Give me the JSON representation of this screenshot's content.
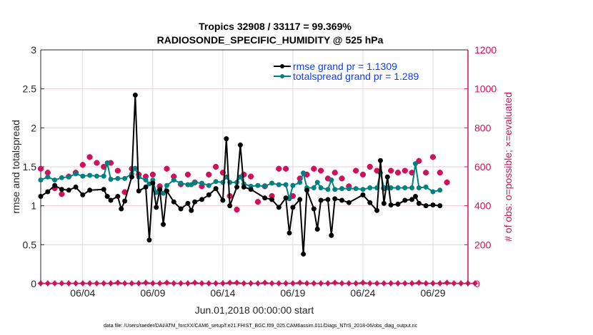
{
  "chart_data": {
    "type": "line",
    "title": "Tropics 32908 / 33117 = 99.369%",
    "subtitle": "RADIOSONDE_SPECIFIC_HUMIDITY @ 525 hPa",
    "xlabel": "Jun.01,2018 00:00:00 start",
    "ylabel": "rmse and totalspread",
    "y2label": "# of obs: o=possible; ×=evaluated",
    "footnote": "data file: /Users/raeder/DAI/ATM_forcXX/CAM6_setup/f.e21.FHIST_BGC.f09_025.CAM6assim.011/Diags_NTrS_2018-06/obs_diag_output.nc",
    "xlim_days": [
      0,
      30.5
    ],
    "ylim": [
      0,
      3
    ],
    "y2lim": [
      0,
      1200
    ],
    "yticks": [
      "0",
      "0.5",
      "1",
      "1.5",
      "2",
      "2.5",
      "3"
    ],
    "y2ticks": [
      "0",
      "200",
      "400",
      "600",
      "800",
      "1000",
      "1200"
    ],
    "xticks": [
      {
        "day": 3,
        "label": "06/04"
      },
      {
        "day": 8,
        "label": "06/09"
      },
      {
        "day": 13,
        "label": "06/14"
      },
      {
        "day": 18,
        "label": "06/19"
      },
      {
        "day": 23,
        "label": "06/24"
      },
      {
        "day": 28,
        "label": "06/29"
      }
    ],
    "legend": {
      "placement": "top-right",
      "entries": [
        "rmse grand pr = 1.1309",
        "totalspread grand pr = 1.289"
      ]
    },
    "colors": {
      "rmse": "#000000",
      "totalspread": "#008080",
      "obs": "#d0105a",
      "legend_text": "#0a3cff",
      "grid": "#f0c8d8"
    },
    "time_step_days": 0.25,
    "series": [
      {
        "name": "rmse",
        "axis": "left",
        "values": [
          1.12,
          null,
          1.18,
          null,
          1.26,
          null,
          1.21,
          null,
          1.2,
          null,
          1.24,
          null,
          1.14,
          null,
          1.2,
          null,
          null,
          null,
          1.21,
          1.12,
          1.07,
          null,
          1.12,
          0.96,
          1.06,
          null,
          1.37,
          2.42,
          1.19,
          null,
          1.24,
          0.56,
          1.29,
          0.98,
          1.21,
          0.76,
          1.19,
          null,
          1.05,
          null,
          0.96,
          null,
          1.03,
          0.94,
          1.05,
          null,
          1.08,
          null,
          1.14,
          null,
          1.22,
          null,
          1.07,
          1.86,
          1.0,
          null,
          1.24,
          1.78,
          1.24,
          null,
          1.21,
          null,
          null,
          null,
          1.1,
          null,
          1.08,
          null,
          0.98,
          null,
          1.1,
          0.65,
          0.98,
          null,
          1.08,
          0.38,
          1.2,
          null,
          0.96,
          0.7,
          1.07,
          null,
          1.08,
          0.62,
          1.09,
          null,
          1.07,
          null,
          1.04,
          null,
          null,
          null,
          1.14,
          null,
          1.04,
          null,
          0.94,
          1.58,
          1.03,
          1.37,
          1.01,
          null,
          1.02,
          null,
          1.07,
          null,
          1.08,
          1.12,
          1.03,
          null,
          1.0,
          null,
          1.01,
          null,
          1.0,
          null
        ]
      },
      {
        "name": "totalspread",
        "axis": "left",
        "values": [
          1.33,
          null,
          1.37,
          null,
          1.33,
          null,
          1.36,
          null,
          1.37,
          null,
          1.41,
          null,
          1.38,
          null,
          1.39,
          null,
          1.38,
          null,
          1.38,
          1.55,
          1.34,
          null,
          1.35,
          null,
          1.35,
          null,
          1.41,
          1.48,
          1.37,
          null,
          1.33,
          1.28,
          1.33,
          1.17,
          1.2,
          1.16,
          1.26,
          null,
          1.33,
          null,
          1.29,
          null,
          1.27,
          1.27,
          1.3,
          null,
          1.29,
          null,
          1.26,
          null,
          1.31,
          null,
          1.3,
          1.37,
          1.3,
          null,
          1.3,
          1.37,
          1.28,
          null,
          1.25,
          null,
          1.26,
          null,
          1.25,
          null,
          1.29,
          null,
          1.27,
          null,
          1.27,
          1.09,
          1.26,
          null,
          1.3,
          1.42,
          1.23,
          null,
          1.23,
          1.3,
          1.23,
          null,
          1.21,
          1.33,
          1.21,
          null,
          1.22,
          null,
          1.22,
          null,
          1.22,
          null,
          1.21,
          null,
          1.23,
          null,
          1.23,
          1.42,
          1.23,
          1.23,
          1.23,
          null,
          1.23,
          null,
          1.23,
          null,
          1.23,
          1.54,
          1.23,
          null,
          1.24,
          null,
          1.18,
          null,
          1.2,
          null
        ]
      },
      {
        "name": "obs_possible",
        "axis": "right",
        "values": [
          590,
          null,
          570,
          null,
          490,
          null,
          460,
          null,
          550,
          null,
          570,
          null,
          610,
          null,
          650,
          null,
          620,
          null,
          600,
          null,
          620,
          null,
          580,
          null,
          470,
          null,
          590,
          null,
          560,
          null,
          550,
          null,
          560,
          null,
          500,
          null,
          590,
          null,
          550,
          null,
          510,
          null,
          560,
          null,
          520,
          null,
          500,
          null,
          560,
          null,
          600,
          null,
          570,
          null,
          450,
          null,
          380,
          null,
          560,
          null,
          550,
          null,
          420,
          null,
          500,
          null,
          450,
          null,
          590,
          null,
          590,
          null,
          450,
          null,
          540,
          null,
          560,
          null,
          590,
          null,
          580,
          null,
          540,
          null,
          570,
          null,
          540,
          null,
          500,
          null,
          580,
          null,
          560,
          null,
          600,
          null,
          580,
          null,
          490,
          null,
          580,
          null,
          570,
          null,
          580,
          null,
          570,
          null,
          630,
          null,
          570,
          null,
          650,
          null,
          570,
          null,
          520,
          null
        ]
      },
      {
        "name": "obs_evaluated",
        "axis": "right",
        "values": [
          590,
          null,
          570,
          null,
          490,
          null,
          460,
          null,
          550,
          null,
          570,
          null,
          610,
          null,
          650,
          null,
          620,
          null,
          600,
          null,
          620,
          null,
          580,
          null,
          470,
          null,
          590,
          null,
          560,
          null,
          550,
          null,
          560,
          null,
          500,
          null,
          590,
          null,
          550,
          null,
          510,
          null,
          560,
          null,
          520,
          null,
          500,
          null,
          560,
          null,
          600,
          null,
          570,
          null,
          450,
          null,
          380,
          null,
          560,
          null,
          550,
          null,
          420,
          null,
          500,
          null,
          450,
          null,
          590,
          null,
          590,
          null,
          450,
          null,
          540,
          null,
          560,
          null,
          590,
          null,
          580,
          null,
          540,
          null,
          570,
          null,
          540,
          null,
          500,
          null,
          580,
          null,
          560,
          null,
          600,
          null,
          580,
          null,
          490,
          null,
          580,
          null,
          570,
          null,
          580,
          null,
          570,
          null,
          630,
          null,
          570,
          null,
          650,
          null,
          570,
          null,
          520,
          null
        ]
      },
      {
        "name": "obs_bottom",
        "axis": "right",
        "values": [
          2,
          null,
          2,
          null,
          2,
          null,
          2,
          null,
          2,
          null,
          2,
          null,
          2,
          null,
          2,
          null,
          2,
          null,
          2,
          null,
          2,
          null,
          5,
          null,
          2,
          null,
          2,
          null,
          2,
          null,
          5,
          null,
          2,
          null,
          2,
          null,
          5,
          null,
          2,
          null,
          2,
          null,
          2,
          null,
          5,
          null,
          2,
          null,
          2,
          null,
          2,
          null,
          2,
          null,
          5,
          null,
          5,
          null,
          2,
          null,
          2,
          null,
          2,
          null,
          5,
          null,
          2,
          null,
          2,
          null,
          2,
          null,
          2,
          null,
          5,
          null,
          2,
          null,
          2,
          null,
          2,
          null,
          2,
          null,
          5,
          null,
          2,
          null,
          2,
          null,
          2,
          null,
          5,
          null,
          2,
          null,
          2,
          null,
          2,
          null,
          2,
          null,
          2,
          null,
          2,
          null,
          2,
          null,
          5,
          null,
          2,
          null,
          2,
          null,
          2,
          null,
          5,
          null,
          2,
          null,
          2,
          null,
          2,
          null,
          2,
          null
        ]
      }
    ]
  }
}
